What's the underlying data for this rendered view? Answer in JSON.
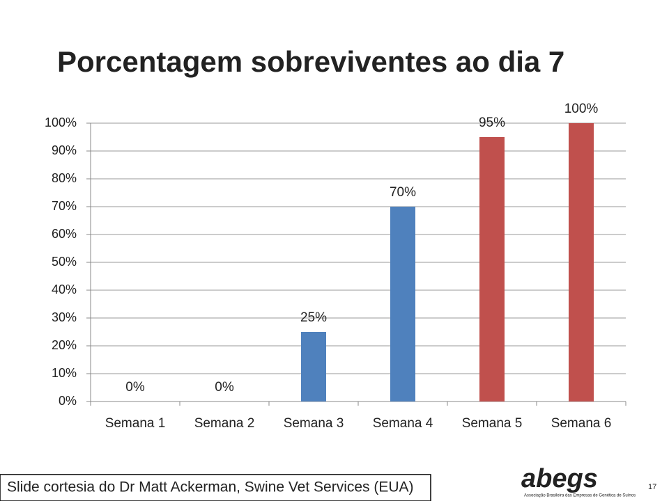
{
  "chart_data": {
    "type": "bar",
    "title": "Porcentagem sobreviventes ao dia 7",
    "categories": [
      "Semana 1",
      "Semana 2",
      "Semana 3",
      "Semana 4",
      "Semana 5",
      "Semana 6"
    ],
    "values": [
      0,
      0,
      25,
      70,
      95,
      100
    ],
    "value_labels": [
      "0%",
      "0%",
      "25%",
      "70%",
      "95%",
      "100%"
    ],
    "colors": [
      "#4f81bd",
      "#4f81bd",
      "#4f81bd",
      "#4f81bd",
      "#c0504d",
      "#c0504d"
    ],
    "ylim": [
      0,
      100
    ],
    "yticks": [
      {
        "value": 0,
        "label": "0%"
      },
      {
        "value": 10,
        "label": "10%"
      },
      {
        "value": 20,
        "label": "20%"
      },
      {
        "value": 30,
        "label": "30%"
      },
      {
        "value": 40,
        "label": "40%"
      },
      {
        "value": 50,
        "label": "50%"
      },
      {
        "value": 60,
        "label": "60%"
      },
      {
        "value": 70,
        "label": "70%"
      },
      {
        "value": 80,
        "label": "80%"
      },
      {
        "value": 90,
        "label": "90%"
      },
      {
        "value": 100,
        "label": "100%"
      }
    ],
    "grid": true
  },
  "footer": {
    "credit": "Slide cortesia do Dr Matt Ackerman, Swine Vet Services (EUA)",
    "logo": "abegs",
    "logo_subtitle": "Associação Brasileira das Empresas de Genética de Suínos",
    "page_number": "17"
  }
}
